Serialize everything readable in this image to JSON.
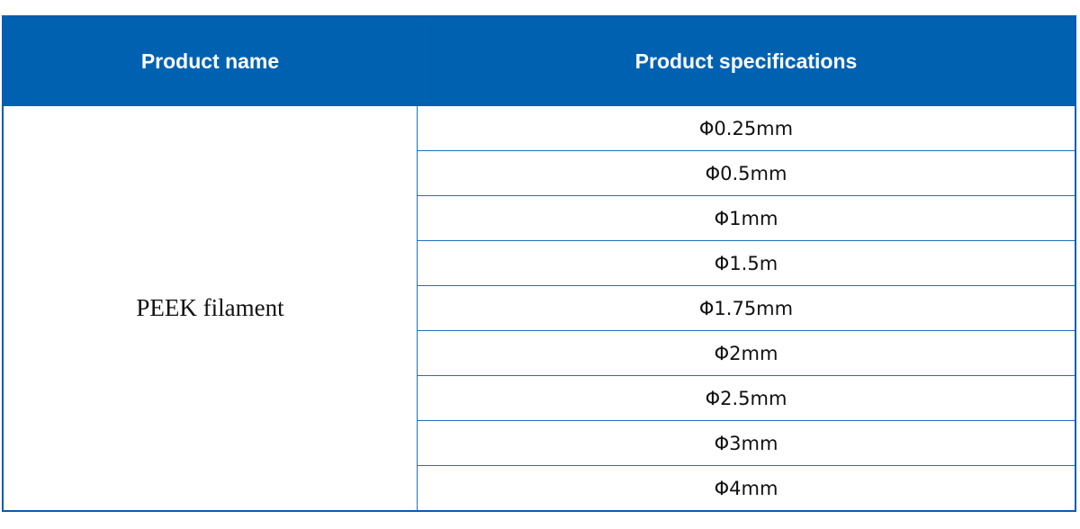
{
  "table": {
    "headers": [
      "Product name",
      "Product specifications"
    ],
    "product_name": "PEEK filament",
    "specifications": [
      "Φ0.25mm",
      "Φ0.5mm",
      "Φ1mm",
      "Φ1.5m",
      "Φ1.75mm",
      "Φ2mm",
      "Φ2.5mm",
      "Φ3mm",
      "Φ4mm"
    ],
    "colors": {
      "header_bg": "#0061b0",
      "border": "#0a5cb0"
    }
  }
}
